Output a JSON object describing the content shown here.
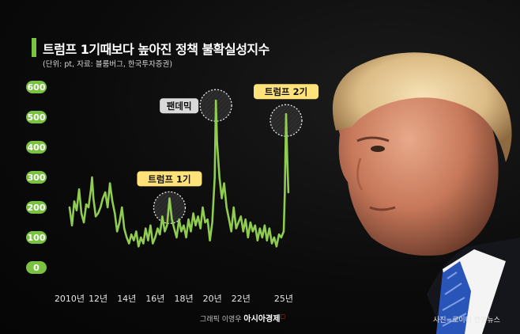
{
  "chart_data": {
    "type": "line",
    "title": "트럼프 1기때보다 높아진 정책 불확실성지수",
    "subtitle": "(단위: pt, 자료: 블룸버그, 한국투자증권)",
    "yticks": [
      0,
      100,
      200,
      300,
      400,
      500,
      600
    ],
    "ylim": [
      0,
      600
    ],
    "xlim": [
      2010,
      2025.5
    ],
    "xticks": [
      {
        "value": 2010,
        "label": "2010년"
      },
      {
        "value": 2012,
        "label": "12년"
      },
      {
        "value": 2014,
        "label": "14년"
      },
      {
        "value": 2016,
        "label": "16년"
      },
      {
        "value": 2018,
        "label": "18년"
      },
      {
        "value": 2020,
        "label": "20년"
      },
      {
        "value": 2022,
        "label": "22년"
      },
      {
        "value": 2025,
        "label": "25년"
      }
    ],
    "line_color": "#8fcc4f",
    "series": [
      {
        "values": [
          [
            2010.0,
            200
          ],
          [
            2010.17,
            140
          ],
          [
            2010.33,
            220
          ],
          [
            2010.5,
            190
          ],
          [
            2010.67,
            260
          ],
          [
            2010.83,
            180
          ],
          [
            2011.0,
            150
          ],
          [
            2011.17,
            210
          ],
          [
            2011.33,
            200
          ],
          [
            2011.5,
            260
          ],
          [
            2011.58,
            300
          ],
          [
            2011.67,
            230
          ],
          [
            2011.83,
            170
          ],
          [
            2012.0,
            180
          ],
          [
            2012.17,
            200
          ],
          [
            2012.33,
            230
          ],
          [
            2012.5,
            250
          ],
          [
            2012.67,
            200
          ],
          [
            2012.83,
            280
          ],
          [
            2013.0,
            220
          ],
          [
            2013.17,
            180
          ],
          [
            2013.33,
            120
          ],
          [
            2013.5,
            150
          ],
          [
            2013.67,
            200
          ],
          [
            2013.83,
            130
          ],
          [
            2014.0,
            100
          ],
          [
            2014.17,
            80
          ],
          [
            2014.33,
            110
          ],
          [
            2014.5,
            90
          ],
          [
            2014.67,
            120
          ],
          [
            2014.83,
            70
          ],
          [
            2015.0,
            100
          ],
          [
            2015.17,
            80
          ],
          [
            2015.33,
            130
          ],
          [
            2015.5,
            90
          ],
          [
            2015.67,
            140
          ],
          [
            2015.83,
            80
          ],
          [
            2016.0,
            100
          ],
          [
            2016.17,
            130
          ],
          [
            2016.33,
            110
          ],
          [
            2016.5,
            170
          ],
          [
            2016.67,
            120
          ],
          [
            2016.83,
            140
          ],
          [
            2017.0,
            230
          ],
          [
            2017.17,
            160
          ],
          [
            2017.33,
            130
          ],
          [
            2017.5,
            100
          ],
          [
            2017.67,
            160
          ],
          [
            2017.83,
            120
          ],
          [
            2018.0,
            140
          ],
          [
            2018.17,
            100
          ],
          [
            2018.33,
            160
          ],
          [
            2018.5,
            120
          ],
          [
            2018.67,
            180
          ],
          [
            2018.83,
            140
          ],
          [
            2019.0,
            170
          ],
          [
            2019.17,
            130
          ],
          [
            2019.33,
            200
          ],
          [
            2019.5,
            150
          ],
          [
            2019.67,
            160
          ],
          [
            2019.83,
            90
          ],
          [
            2020.0,
            150
          ],
          [
            2020.17,
            300
          ],
          [
            2020.25,
            555
          ],
          [
            2020.33,
            420
          ],
          [
            2020.5,
            300
          ],
          [
            2020.67,
            230
          ],
          [
            2020.83,
            280
          ],
          [
            2021.0,
            200
          ],
          [
            2021.17,
            160
          ],
          [
            2021.33,
            120
          ],
          [
            2021.5,
            200
          ],
          [
            2021.67,
            130
          ],
          [
            2021.83,
            150
          ],
          [
            2022.0,
            170
          ],
          [
            2022.17,
            120
          ],
          [
            2022.33,
            160
          ],
          [
            2022.5,
            100
          ],
          [
            2022.67,
            150
          ],
          [
            2022.83,
            120
          ],
          [
            2023.0,
            140
          ],
          [
            2023.17,
            90
          ],
          [
            2023.33,
            130
          ],
          [
            2023.5,
            100
          ],
          [
            2023.67,
            140
          ],
          [
            2023.83,
            90
          ],
          [
            2024.0,
            130
          ],
          [
            2024.17,
            80
          ],
          [
            2024.33,
            100
          ],
          [
            2024.5,
            70
          ],
          [
            2024.67,
            110
          ],
          [
            2024.83,
            100
          ],
          [
            2025.0,
            120
          ],
          [
            2025.08,
            250
          ],
          [
            2025.17,
            510
          ],
          [
            2025.25,
            360
          ],
          [
            2025.33,
            250
          ]
        ]
      }
    ],
    "annotations": [
      {
        "label": "트럼프 1기",
        "x": 2017.0,
        "y": 220,
        "style": "yellow"
      },
      {
        "label": "팬데믹",
        "x": 2020.25,
        "y": 560,
        "style": "gray"
      },
      {
        "label": "트럼프 2기",
        "x": 2025.17,
        "y": 510,
        "style": "yellow"
      }
    ]
  },
  "credits": {
    "graphic_by": "그래픽 이영우",
    "brand": "아시아경제",
    "photo": "사진=로이터 연합뉴스"
  }
}
